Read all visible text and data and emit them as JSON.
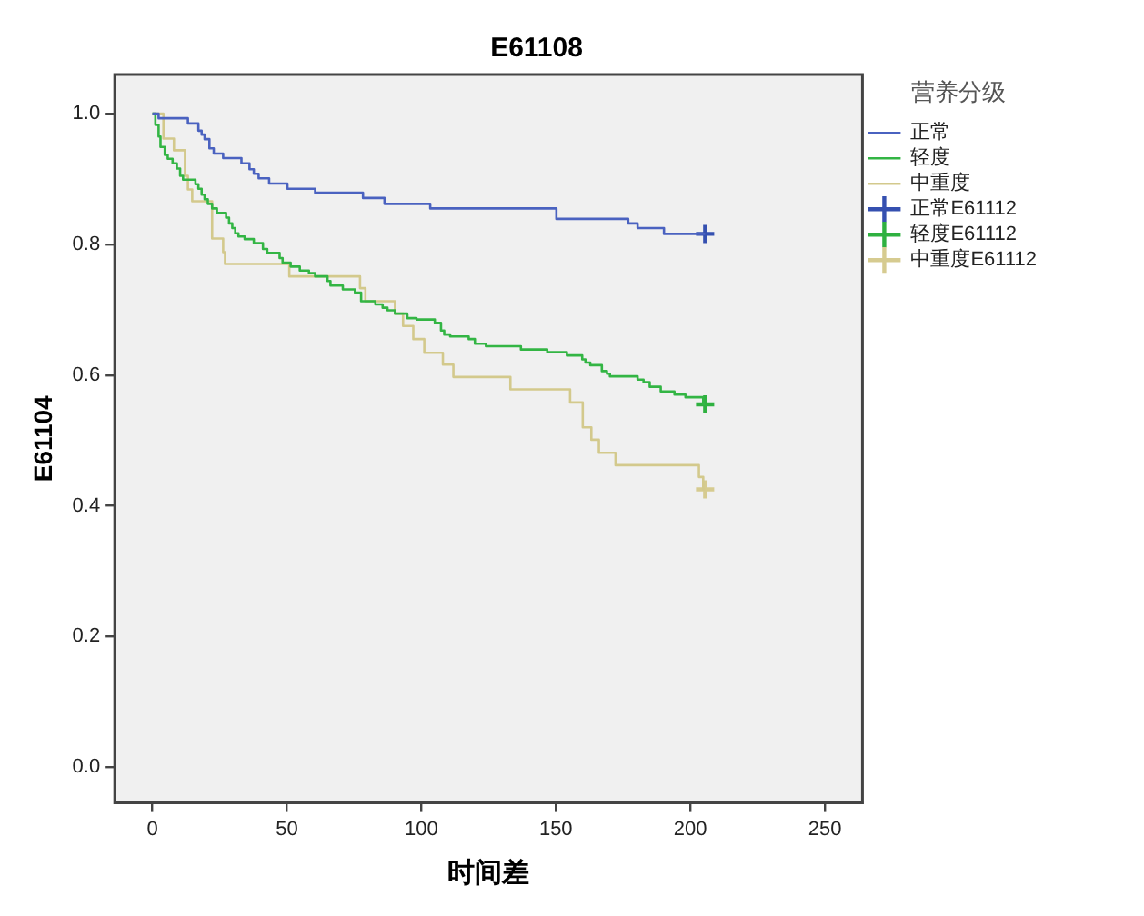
{
  "chart_data": {
    "type": "step",
    "title": "E61108",
    "xlabel": "时间差",
    "ylabel": "E61104",
    "legend_title": "营养分级",
    "legend": "top right",
    "grid": false,
    "xlim": [
      -14,
      264
    ],
    "ylim": [
      -0.055,
      1.06
    ],
    "xticks": [
      0,
      50,
      100,
      150,
      200,
      250
    ],
    "yticks": [
      {
        "value": 0,
        "label": "0.0"
      },
      {
        "value": 0.2,
        "label": "0.2"
      },
      {
        "value": 0.4,
        "label": "0.4"
      },
      {
        "value": 0.6,
        "label": "0.6"
      },
      {
        "value": 0.8,
        "label": "0.8"
      },
      {
        "value": 1,
        "label": "1.0"
      }
    ],
    "series": [
      {
        "name": "正常",
        "color": "#4a62c0",
        "x": [
          0,
          2.3,
          13.2,
          17.1,
          18.3,
          19.4,
          21.2,
          22.8,
          26.3,
          33.1,
          36.1,
          37.7,
          39.5,
          43.4,
          50.2,
          60.5,
          78.3,
          86.3,
          103.3,
          150.2,
          176.9,
          180.4,
          190.2,
          205.5
        ],
        "values": [
          1.0,
          0.993,
          0.985,
          0.974,
          0.968,
          0.961,
          0.947,
          0.939,
          0.932,
          0.924,
          0.915,
          0.908,
          0.901,
          0.893,
          0.885,
          0.879,
          0.871,
          0.862,
          0.855,
          0.839,
          0.832,
          0.825,
          0.816,
          0.816
        ]
      },
      {
        "name": "轻度",
        "color": "#33b544",
        "x": [
          0,
          1.1,
          2.3,
          3.0,
          4.6,
          5.7,
          7.5,
          9.1,
          10.3,
          11.4,
          16.0,
          17.1,
          18.3,
          19.4,
          20.6,
          22.2,
          24.0,
          27.4,
          28.5,
          29.7,
          30.8,
          32.0,
          34.3,
          37.7,
          41.1,
          42.7,
          47.3,
          48.4,
          51.4,
          54.8,
          58.2,
          60.5,
          65.1,
          66.2,
          70.8,
          75.3,
          77.6,
          82.9,
          85.6,
          87.4,
          90.2,
          94.8,
          98.2,
          105.0,
          107.3,
          108.5,
          110.7,
          117.6,
          119.9,
          124.0,
          137.0,
          146.8,
          154.1,
          159.8,
          161.0,
          162.8,
          167.1,
          169.0,
          170.1,
          180.4,
          182.6,
          184.9,
          189.0,
          194.1,
          198.2,
          204.8,
          205.5
        ],
        "values": [
          1.0,
          0.983,
          0.965,
          0.949,
          0.937,
          0.931,
          0.924,
          0.916,
          0.905,
          0.899,
          0.892,
          0.885,
          0.876,
          0.869,
          0.862,
          0.855,
          0.848,
          0.841,
          0.832,
          0.825,
          0.817,
          0.812,
          0.808,
          0.802,
          0.793,
          0.787,
          0.779,
          0.772,
          0.766,
          0.76,
          0.756,
          0.751,
          0.744,
          0.737,
          0.731,
          0.726,
          0.713,
          0.708,
          0.703,
          0.699,
          0.694,
          0.687,
          0.685,
          0.68,
          0.668,
          0.662,
          0.659,
          0.655,
          0.648,
          0.644,
          0.639,
          0.635,
          0.63,
          0.624,
          0.619,
          0.615,
          0.606,
          0.602,
          0.598,
          0.593,
          0.589,
          0.582,
          0.575,
          0.57,
          0.566,
          0.555,
          0.555
        ]
      },
      {
        "name": "中重度",
        "color": "#d3c98c",
        "x": [
          0,
          4.1,
          8.0,
          12.1,
          13.2,
          14.8,
          22.2,
          26.3,
          27.0,
          50.9,
          77.2,
          79.2,
          90.2,
          93.2,
          97.0,
          101.1,
          108.0,
          111.9,
          133.1,
          155.3,
          160.0,
          163.2,
          166.0,
          172.2,
          203.2,
          204.8,
          205.5
        ],
        "values": [
          1.0,
          0.962,
          0.944,
          0.905,
          0.884,
          0.866,
          0.809,
          0.788,
          0.77,
          0.751,
          0.733,
          0.713,
          0.694,
          0.675,
          0.655,
          0.634,
          0.616,
          0.597,
          0.578,
          0.558,
          0.52,
          0.501,
          0.481,
          0.462,
          0.444,
          0.425,
          0.425
        ]
      },
      {
        "name": "正常E61112",
        "type": "scatter",
        "marker": "cross",
        "color": "#3550b0",
        "x": [
          205.5
        ],
        "values": [
          0.816
        ]
      },
      {
        "name": "轻度E61112",
        "type": "scatter",
        "marker": "cross",
        "color": "#2fb140",
        "x": [
          205.5
        ],
        "values": [
          0.555
        ]
      },
      {
        "name": "中重度E61112",
        "type": "scatter",
        "marker": "cross",
        "color": "#d6cb90",
        "x": [
          205.5
        ],
        "values": [
          0.425
        ]
      }
    ]
  }
}
